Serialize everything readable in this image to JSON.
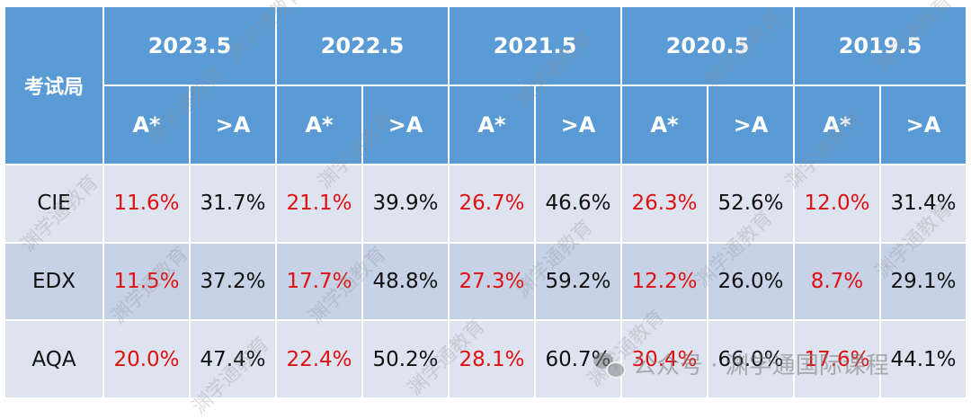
{
  "table": {
    "corner_label": "考试局",
    "years": [
      "2023.5",
      "2022.5",
      "2021.5",
      "2020.5",
      "2019.5"
    ],
    "sub_headers": {
      "astar": "A*",
      "a_or_above": ">A"
    },
    "rows": [
      {
        "board": "CIE",
        "cells": [
          "11.6%",
          "31.7%",
          "21.1%",
          "39.9%",
          "26.7%",
          "46.6%",
          "26.3%",
          "52.6%",
          "12.0%",
          "31.4%"
        ]
      },
      {
        "board": "EDX",
        "cells": [
          "11.5%",
          "37.2%",
          "17.7%",
          "48.8%",
          "27.3%",
          "59.2%",
          "12.2%",
          "26.0%",
          "8.7%",
          "29.1%"
        ]
      },
      {
        "board": "AQA",
        "cells": [
          "20.0%",
          "47.4%",
          "22.4%",
          "50.2%",
          "28.1%",
          "60.7%",
          "30.4%",
          "66.0%",
          "17.6%",
          "44.1%"
        ]
      }
    ]
  },
  "watermark": {
    "text": "渊学通教育"
  },
  "footer": {
    "text": "公众号 · 渊学通国际课程",
    "icon": "wechat-icon"
  },
  "colors": {
    "header": "#5b9bd5",
    "row_light": "#dde3ef",
    "row_dark": "#c7d2e6",
    "astar_text": "#e01010"
  }
}
